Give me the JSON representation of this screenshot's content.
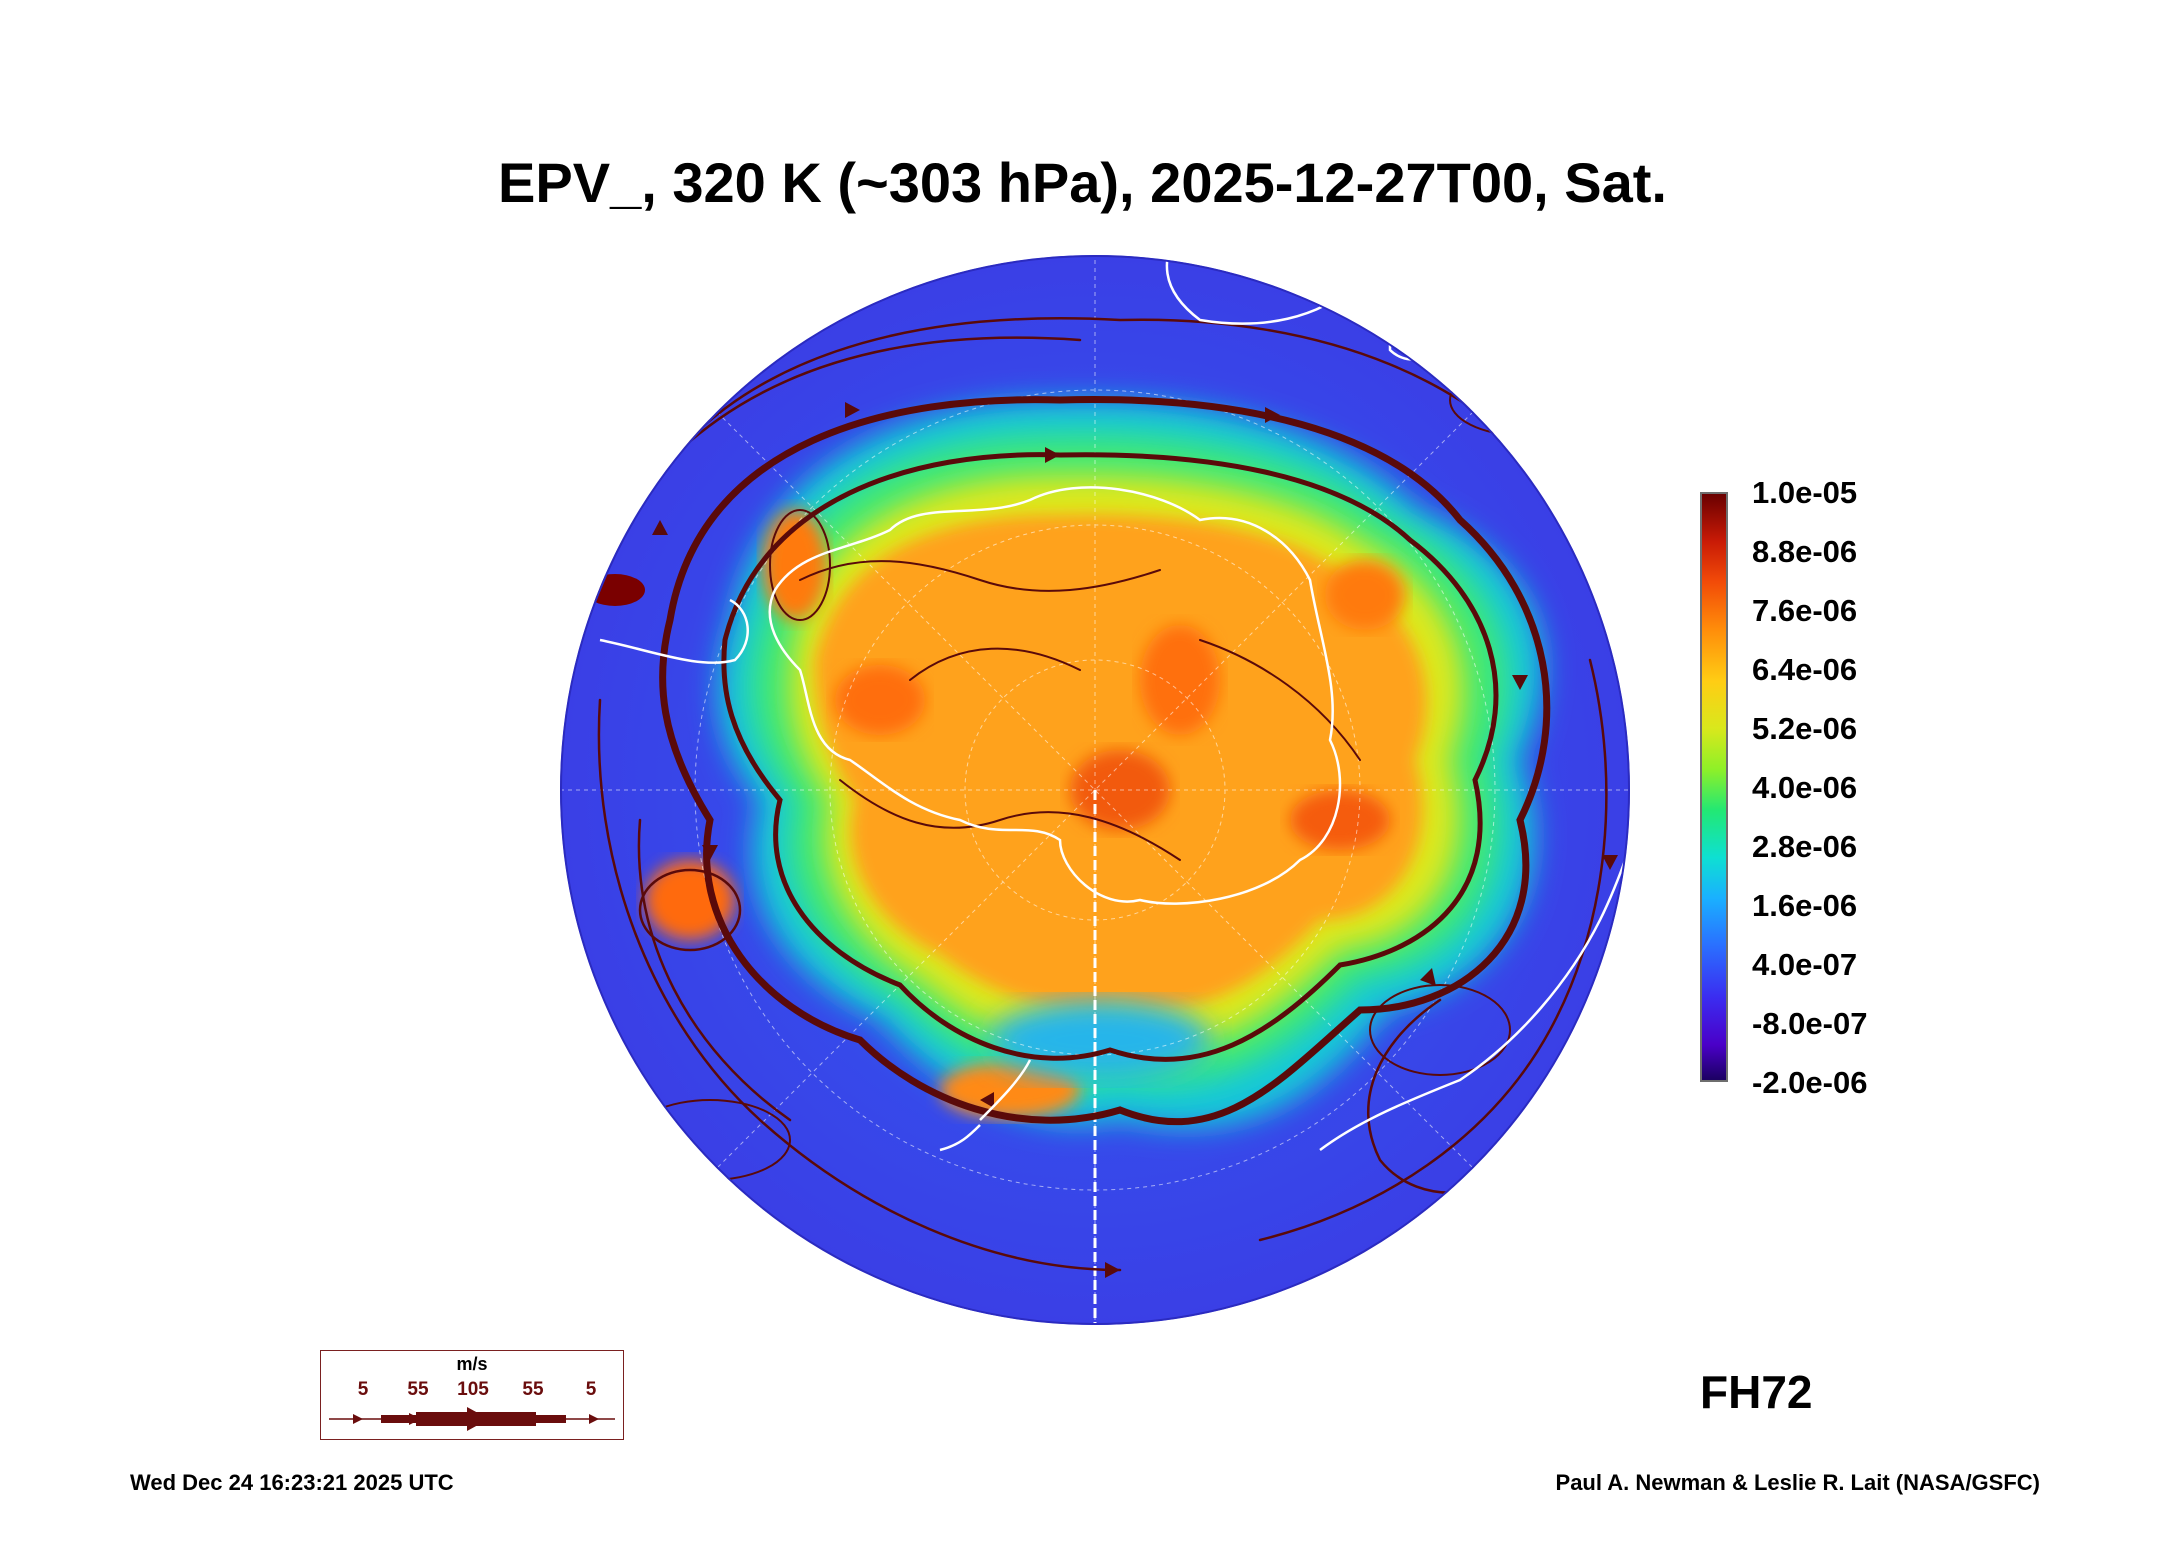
{
  "title": "EPV_, 320 K (~303 hPa), 2025-12-27T00, Sat.",
  "colorbar": {
    "labels": [
      "1.0e-05",
      "8.8e-06",
      "7.6e-06",
      "6.4e-06",
      "5.2e-06",
      "4.0e-06",
      "2.8e-06",
      "1.6e-06",
      "4.0e-07",
      "-8.0e-07",
      "-2.0e-06"
    ],
    "colors": [
      "#1b0062",
      "#4a00c8",
      "#2a70ff",
      "#0ee0d2",
      "#22e874",
      "#d9e81c",
      "#ffcd14",
      "#ff8c0a",
      "#f24b08",
      "#c81a06",
      "#6a0000"
    ]
  },
  "wind_legend": {
    "unit": "m/s",
    "values": [
      "5",
      "55",
      "105",
      "55",
      "5"
    ],
    "color": "#6a0d0d"
  },
  "forecast_hour": "FH72",
  "footer": {
    "timestamp": "Wed Dec 24 16:23:21 2025 UTC",
    "credit": "Paul A. Newman & Leslie R. Lait (NASA/GSFC)"
  },
  "map": {
    "projection": "south polar stereographic",
    "streamline_color": "#5a0a0a",
    "coastline_color": "#ffffff",
    "background_field_color": "#3b4cf0"
  }
}
